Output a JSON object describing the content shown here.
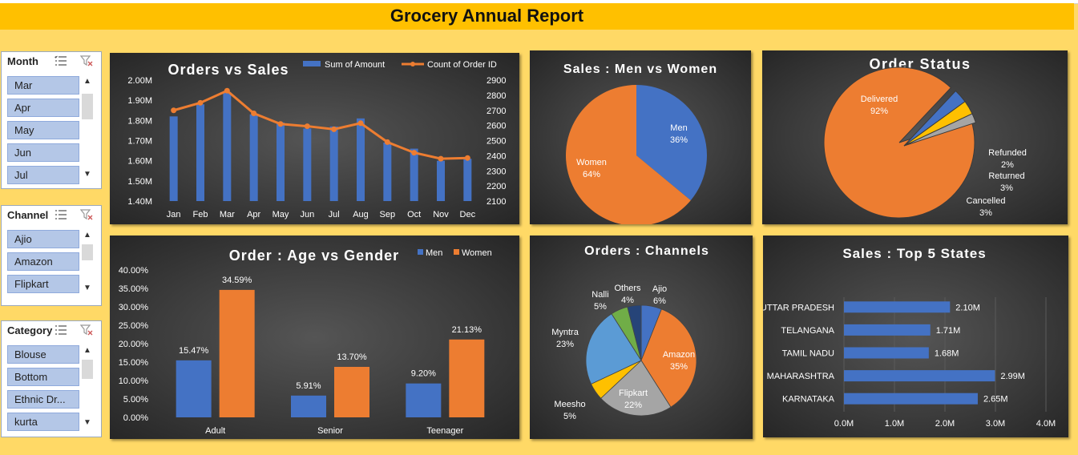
{
  "report": {
    "title": "Grocery Annual Report"
  },
  "colors": {
    "blue": "#4472C4",
    "orange": "#ED7D31",
    "grey": "#A5A5A5",
    "gold": "#FFC000",
    "lightblue": "#5B9BD5",
    "green": "#70AD47",
    "navy": "#264478"
  },
  "slicers": [
    {
      "label": "Month",
      "items": [
        "Mar",
        "Apr",
        "May",
        "Jun",
        "Jul"
      ]
    },
    {
      "label": "Channel",
      "items": [
        "Ajio",
        "Amazon",
        "Flipkart"
      ]
    },
    {
      "label": "Category",
      "items": [
        "Blouse",
        "Bottom",
        "Ethnic Dr...",
        "kurta"
      ]
    }
  ],
  "chart_data": [
    {
      "type": "bar",
      "title": "Orders vs Sales",
      "categories": [
        "Jan",
        "Feb",
        "Mar",
        "Apr",
        "May",
        "Jun",
        "Jul",
        "Aug",
        "Sep",
        "Oct",
        "Nov",
        "Dec"
      ],
      "series": [
        {
          "name": "Sum of Amount",
          "type": "bar",
          "axis": "left",
          "values": [
            1.82,
            1.88,
            1.94,
            1.83,
            1.79,
            1.76,
            1.77,
            1.81,
            1.69,
            1.66,
            1.6,
            1.61
          ]
        },
        {
          "name": "Count of Order ID",
          "type": "line",
          "axis": "right",
          "values": [
            2700,
            2750,
            2830,
            2680,
            2610,
            2595,
            2575,
            2615,
            2490,
            2420,
            2380,
            2385
          ]
        }
      ],
      "y_ticks": [
        "2.00M",
        "1.90M",
        "1.80M",
        "1.70M",
        "1.60M",
        "1.50M",
        "1.40M"
      ],
      "ylim": [
        1.4,
        2.0
      ],
      "y2_ticks": [
        "2900",
        "2800",
        "2700",
        "2600",
        "2500",
        "2400",
        "2300",
        "2200",
        "2100"
      ],
      "y2lim": [
        2100,
        2900
      ],
      "legend": "top-right"
    },
    {
      "type": "pie",
      "title": "Sales : Men vs Women",
      "slices": [
        {
          "name": "Men",
          "pct_label": "36%",
          "value": 36
        },
        {
          "name": "Women",
          "pct_label": "64%",
          "value": 64
        }
      ]
    },
    {
      "type": "pie",
      "title": "Order  Status",
      "slices": [
        {
          "name": "Delivered",
          "pct_label": "92%",
          "value": 92
        },
        {
          "name": "Cancelled",
          "pct_label": "3%",
          "value": 3
        },
        {
          "name": "Returned",
          "pct_label": "3%",
          "value": 3
        },
        {
          "name": "Refunded",
          "pct_label": "2%",
          "value": 2
        }
      ],
      "exploded": [
        "Cancelled",
        "Returned",
        "Refunded"
      ]
    },
    {
      "type": "bar",
      "title": "Order : Age vs Gender",
      "categories": [
        "Adult",
        "Senior",
        "Teenager"
      ],
      "series": [
        {
          "name": "Men",
          "values": [
            15.47,
            5.91,
            9.2
          ],
          "labels": [
            "15.47%",
            "5.91%",
            "9.20%"
          ]
        },
        {
          "name": "Women",
          "values": [
            34.59,
            13.7,
            21.13
          ],
          "labels": [
            "34.59%",
            "13.70%",
            "21.13%"
          ]
        }
      ],
      "y_ticks": [
        "40.00%",
        "35.00%",
        "30.00%",
        "25.00%",
        "20.00%",
        "15.00%",
        "10.00%",
        "5.00%",
        "0.00%"
      ],
      "ylim": [
        0,
        40
      ],
      "legend": "top-right"
    },
    {
      "type": "pie",
      "title": "Orders : Channels",
      "slices": [
        {
          "name": "Ajio",
          "pct_label": "6%",
          "value": 6
        },
        {
          "name": "Amazon",
          "pct_label": "35%",
          "value": 35
        },
        {
          "name": "Flipkart",
          "pct_label": "22%",
          "value": 22
        },
        {
          "name": "Meesho",
          "pct_label": "5%",
          "value": 5
        },
        {
          "name": "Myntra",
          "pct_label": "23%",
          "value": 23
        },
        {
          "name": "Nalli",
          "pct_label": "5%",
          "value": 5
        },
        {
          "name": "Others",
          "pct_label": "4%",
          "value": 4
        }
      ]
    },
    {
      "type": "bar",
      "orientation": "horizontal",
      "title": "Sales : Top 5 States",
      "categories": [
        "UTTAR PRADESH",
        "TELANGANA",
        "TAMIL NADU",
        "MAHARASHTRA",
        "KARNATAKA"
      ],
      "values": [
        2.1,
        1.71,
        1.68,
        2.99,
        2.65
      ],
      "labels": [
        "2.10M",
        "1.71M",
        "1.68M",
        "2.99M",
        "2.65M"
      ],
      "x_ticks": [
        "0.0M",
        "1.0M",
        "2.0M",
        "3.0M",
        "4.0M"
      ],
      "xlim": [
        0,
        4.0
      ]
    }
  ]
}
